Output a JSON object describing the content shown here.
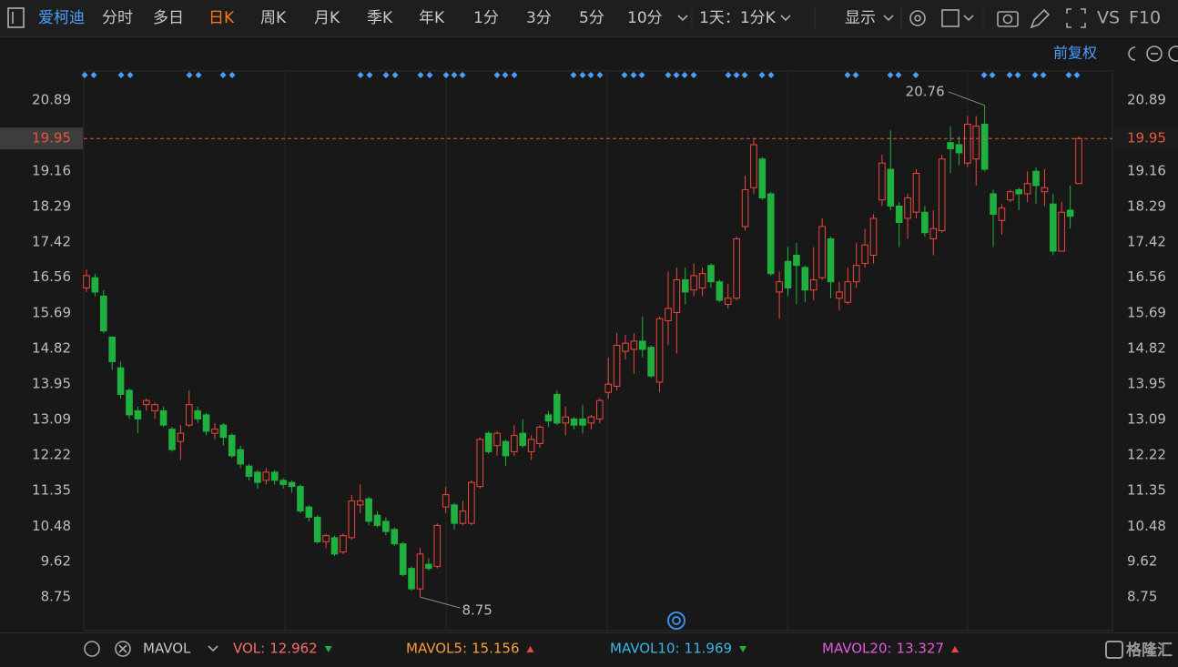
{
  "toolbar": {
    "stock": "爱柯迪",
    "periods": [
      "分时",
      "多日",
      "日K",
      "周K",
      "月K",
      "季K",
      "年K",
      "1分",
      "3分",
      "5分",
      "10分"
    ],
    "active_period": 2,
    "range": "1天：1分K",
    "display": "显示",
    "vs": "VS",
    "f10": "F10",
    "adjust": "前复权"
  },
  "chart_data": {
    "type": "candlestick",
    "ylim": [
      7.93,
      21.6
    ],
    "yticks": [
      20.89,
      19.16,
      18.29,
      17.42,
      16.56,
      15.69,
      14.82,
      13.95,
      13.09,
      12.22,
      11.35,
      10.48,
      9.62,
      8.75
    ],
    "grid": false,
    "up_color": "#f0463c",
    "down_color": "#1fb03f",
    "up_hollow": true,
    "last_price": 19.95,
    "last_price_color": "#e8553e",
    "high_label": 20.76,
    "low_label": 8.75,
    "open": [
      16.3,
      16.55,
      16.1,
      15.1,
      14.35,
      13.8,
      13.3,
      13.45,
      13.3,
      13.3,
      12.85,
      12.55,
      12.95,
      13.3,
      13.2,
      12.75,
      12.95,
      12.7,
      12.35,
      11.95,
      11.8,
      11.6,
      11.8,
      11.6,
      11.55,
      11.45,
      10.95,
      10.7,
      10.1,
      10.2,
      9.85,
      10.2,
      11.0,
      11.15,
      10.75,
      10.6,
      10.4,
      10.05,
      9.45,
      8.95,
      9.55,
      9.5,
      10.95,
      11.0,
      10.55,
      10.55,
      11.45,
      12.75,
      12.45,
      12.55,
      12.3,
      12.75,
      12.3,
      12.5,
      13.2,
      13.7,
      13.0,
      13.1,
      13.1,
      13.0,
      13.1,
      13.75,
      13.9,
      14.75,
      14.8,
      15.0,
      14.85,
      14.0,
      15.5,
      15.7,
      16.5,
      16.25,
      16.3,
      16.85,
      16.45,
      15.9,
      16.05,
      17.8,
      18.75,
      19.45,
      18.6,
      16.2,
      16.95,
      17.1,
      16.8,
      16.25,
      16.55,
      17.5,
      16.05,
      15.95,
      16.45,
      16.9,
      17.1,
      18.45,
      19.2,
      18.3,
      18.0,
      18.15,
      18.15,
      17.5,
      17.7,
      19.85,
      19.8,
      19.35,
      19.45,
      20.3,
      18.6,
      17.95,
      18.45,
      18.7,
      18.6,
      19.15,
      18.65,
      18.35,
      17.2,
      18.2,
      18.85
    ],
    "high": [
      16.75,
      16.65,
      16.25,
      15.1,
      14.5,
      13.85,
      13.4,
      13.6,
      13.5,
      13.4,
      12.9,
      12.95,
      13.8,
      13.4,
      13.25,
      13.0,
      13.0,
      12.75,
      12.45,
      12.0,
      11.85,
      11.9,
      11.85,
      11.65,
      11.6,
      11.5,
      11.0,
      10.75,
      10.3,
      10.25,
      10.3,
      11.25,
      11.5,
      11.2,
      10.85,
      10.7,
      10.45,
      10.1,
      9.5,
      9.95,
      9.7,
      10.55,
      11.45,
      11.05,
      11.1,
      11.6,
      12.65,
      12.8,
      12.8,
      12.6,
      12.95,
      13.1,
      12.7,
      12.95,
      13.3,
      13.8,
      13.4,
      13.15,
      13.45,
      13.2,
      13.6,
      14.6,
      15.2,
      15.15,
      15.2,
      15.6,
      14.9,
      15.6,
      16.7,
      16.8,
      16.8,
      16.9,
      16.8,
      16.9,
      16.5,
      16.4,
      17.55,
      19.05,
      19.95,
      19.5,
      18.65,
      16.7,
      17.3,
      17.4,
      16.85,
      17.3,
      18.0,
      17.55,
      16.45,
      16.8,
      17.4,
      17.75,
      18.1,
      19.55,
      20.15,
      18.4,
      18.6,
      19.2,
      18.3,
      18.2,
      19.55,
      20.25,
      20.0,
      20.5,
      20.5,
      20.76,
      18.7,
      18.35,
      18.7,
      18.75,
      19.15,
      19.25,
      19.2,
      18.6,
      18.4,
      18.8,
      20.0
    ],
    "low": [
      16.2,
      16.1,
      15.2,
      14.3,
      13.6,
      13.1,
      12.75,
      13.3,
      13.1,
      12.9,
      12.3,
      12.1,
      12.9,
      13.0,
      12.7,
      12.6,
      12.45,
      12.15,
      11.9,
      11.6,
      11.4,
      11.5,
      11.5,
      11.4,
      11.3,
      10.8,
      10.6,
      10.05,
      9.95,
      9.75,
      9.8,
      10.15,
      10.8,
      10.5,
      10.45,
      10.25,
      10.0,
      9.25,
      8.9,
      8.75,
      9.4,
      9.45,
      10.8,
      10.4,
      10.5,
      10.5,
      11.4,
      12.25,
      12.2,
      11.95,
      12.2,
      12.4,
      12.1,
      12.4,
      12.9,
      12.95,
      12.7,
      12.85,
      12.75,
      12.85,
      13.0,
      13.6,
      13.8,
      14.55,
      14.2,
      14.6,
      14.1,
      13.75,
      14.9,
      14.7,
      15.9,
      16.1,
      16.1,
      16.3,
      15.95,
      15.8,
      16.0,
      17.7,
      18.6,
      18.45,
      16.6,
      15.55,
      16.1,
      15.9,
      15.95,
      16.0,
      16.5,
      16.05,
      15.75,
      15.9,
      16.3,
      16.8,
      16.9,
      18.3,
      18.2,
      17.3,
      17.5,
      18.0,
      17.55,
      17.1,
      17.65,
      19.1,
      19.3,
      19.25,
      18.8,
      19.15,
      17.3,
      17.6,
      18.4,
      18.2,
      18.4,
      18.35,
      18.3,
      17.1,
      17.2,
      17.75,
      18.85
    ],
    "close": [
      16.6,
      16.2,
      15.25,
      14.5,
      13.7,
      13.2,
      13.1,
      13.55,
      13.45,
      12.95,
      12.35,
      12.75,
      13.45,
      13.1,
      12.8,
      12.85,
      12.65,
      12.2,
      12.0,
      11.7,
      11.55,
      11.8,
      11.6,
      11.5,
      11.45,
      10.85,
      10.7,
      10.1,
      10.25,
      9.8,
      10.25,
      11.1,
      11.1,
      10.6,
      10.5,
      10.35,
      10.05,
      9.3,
      8.95,
      9.8,
      9.45,
      10.5,
      11.25,
      10.55,
      10.85,
      11.55,
      12.6,
      12.3,
      12.75,
      12.2,
      12.7,
      12.45,
      12.6,
      12.9,
      13.05,
      13.0,
      13.15,
      12.95,
      12.95,
      13.15,
      13.55,
      13.95,
      14.9,
      14.95,
      15.0,
      14.8,
      14.15,
      15.55,
      15.8,
      16.5,
      16.2,
      16.6,
      16.65,
      16.45,
      16.0,
      16.05,
      17.5,
      18.7,
      19.8,
      18.5,
      16.65,
      16.45,
      16.3,
      16.85,
      16.25,
      16.5,
      17.8,
      16.45,
      16.2,
      16.45,
      16.85,
      17.35,
      18.0,
      19.35,
      18.3,
      17.9,
      18.5,
      19.1,
      17.65,
      17.75,
      19.45,
      19.7,
      19.6,
      20.3,
      20.25,
      19.2,
      18.1,
      18.25,
      18.65,
      18.6,
      18.85,
      18.8,
      18.75,
      17.2,
      18.15,
      18.05,
      19.95
    ]
  },
  "indicator_bar": {
    "name": "MAVOL",
    "items": [
      {
        "label": "VOL:",
        "value": 12.962,
        "color": "#ff6b6b",
        "trend": "down"
      },
      {
        "label": "MAVOL5:",
        "value": 15.156,
        "color": "#ff9a3c",
        "trend": "up"
      },
      {
        "label": "MAVOL10:",
        "value": 11.969,
        "color": "#3ab6e8",
        "trend": "down"
      },
      {
        "label": "MAVOL20:",
        "value": 13.327,
        "color": "#e65ae0",
        "trend": "up"
      }
    ]
  },
  "watermark": "格隆汇"
}
